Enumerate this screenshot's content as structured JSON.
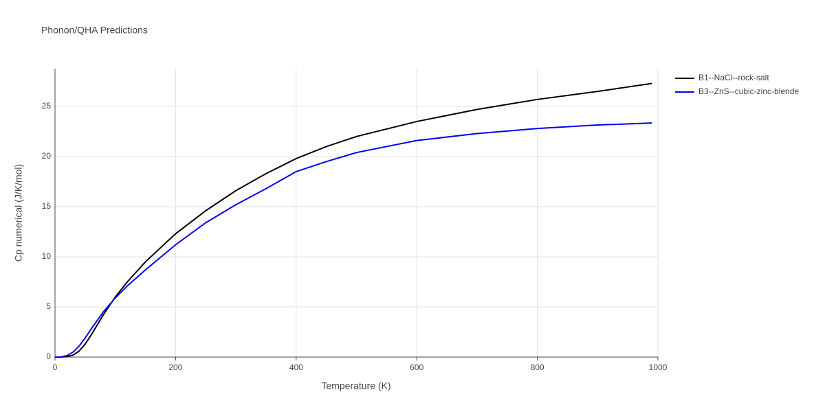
{
  "chart_data": {
    "type": "line",
    "title": "Phonon/QHA Predictions",
    "x_label": "Temperature (K)",
    "y_label": "Cp numerical (J/K/mol)",
    "x": [
      0,
      10,
      20,
      30,
      40,
      50,
      60,
      80,
      100,
      120,
      150,
      200,
      250,
      300,
      350,
      400,
      450,
      500,
      600,
      700,
      800,
      900,
      990
    ],
    "series": [
      {
        "name": "B1--NaCl--rock-salt",
        "color": "#000000",
        "values": [
          0,
          0,
          0.05,
          0.2,
          0.6,
          1.3,
          2.2,
          4.2,
          6.0,
          7.5,
          9.5,
          12.3,
          14.6,
          16.6,
          18.3,
          19.8,
          21.0,
          22.0,
          23.5,
          24.7,
          25.7,
          26.5,
          27.3
        ]
      },
      {
        "name": "B3--ZnS--cubic-zinc-blende",
        "color": "#0000ee",
        "values": [
          0,
          0.02,
          0.15,
          0.5,
          1.1,
          1.9,
          2.8,
          4.5,
          5.9,
          7.1,
          8.7,
          11.2,
          13.4,
          15.2,
          16.8,
          18.5,
          19.5,
          20.4,
          21.6,
          22.3,
          22.8,
          23.15,
          23.35
        ]
      }
    ],
    "xlim": [
      0,
      1000
    ],
    "xticks": [
      0,
      200,
      400,
      600,
      800,
      1000
    ],
    "ylim": [
      0,
      28.77
    ],
    "yticks": [
      0,
      5,
      10,
      15,
      20,
      25
    ],
    "grid": true,
    "legend": "outside-right"
  }
}
